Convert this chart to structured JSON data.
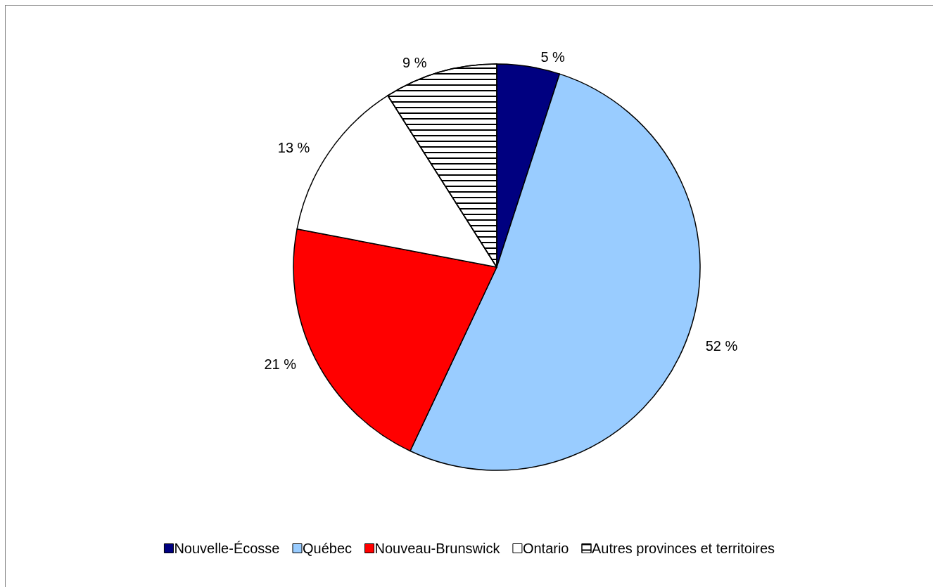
{
  "chart_data": {
    "type": "pie",
    "categories": [
      "Nouvelle-Écosse",
      "Québec",
      "Nouveau-Brunswick",
      "Ontario",
      "Autres provinces et territoires"
    ],
    "values": [
      5,
      52,
      21,
      13,
      9
    ],
    "colors": [
      "#000080",
      "#99ccff",
      "#ff0000",
      "#ffffff",
      "#ffffff"
    ],
    "value_labels": [
      "5 %",
      "52 %",
      "21 %",
      "13 %",
      "9 %"
    ],
    "legend": "bottom"
  }
}
